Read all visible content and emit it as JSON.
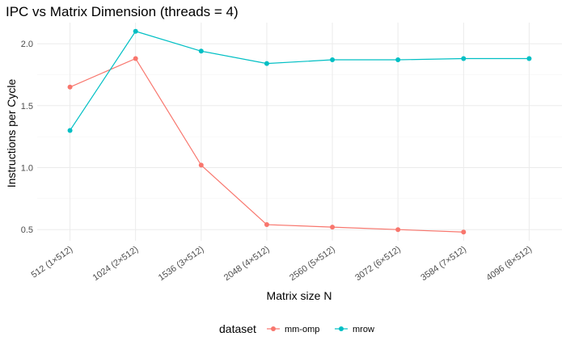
{
  "chart_data": {
    "type": "line",
    "title": "IPC vs Matrix Dimension (threads = 4)",
    "xlabel": "Matrix size N",
    "ylabel": "Instructions per Cycle",
    "categories": [
      "512 (1×512)",
      "1024 (2×512)",
      "1536 (3×512)",
      "2048 (4×512)",
      "2560 (5×512)",
      "3072 (6×512)",
      "3584 (7×512)",
      "4096 (8×512)"
    ],
    "ylim": [
      0.41,
      2.17
    ],
    "yticks": [
      0.5,
      1.0,
      1.5,
      2.0
    ],
    "ytick_labels": [
      "0.5",
      "1.0",
      "1.5",
      "2.0"
    ],
    "grid": true,
    "legend": {
      "title": "dataset",
      "position": "bottom"
    },
    "series": [
      {
        "name": "mm-omp",
        "color": "#F8766D",
        "values": [
          1.65,
          1.88,
          1.02,
          0.54,
          0.52,
          0.5,
          0.48,
          null
        ]
      },
      {
        "name": "mrow",
        "color": "#00BFC4",
        "values": [
          1.3,
          2.1,
          1.94,
          1.84,
          1.87,
          1.87,
          1.88,
          1.88
        ]
      }
    ]
  }
}
